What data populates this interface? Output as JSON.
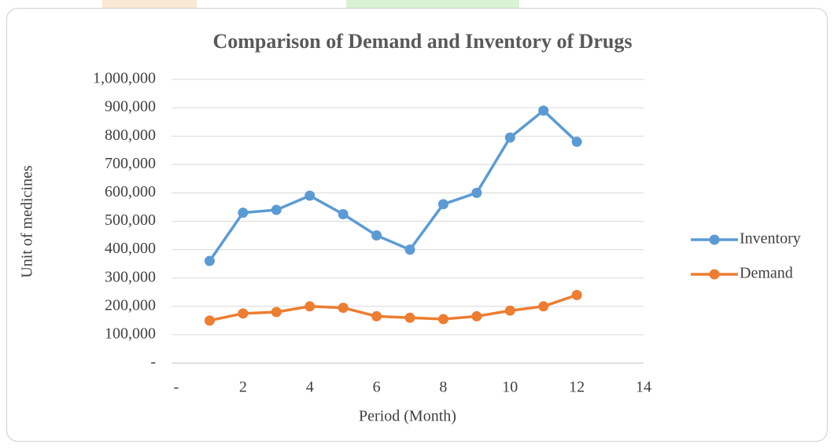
{
  "chart_data": {
    "type": "line",
    "title": "Comparison of Demand and Inventory of Drugs",
    "x_label": "Period (Month)",
    "y_label": "Unit of medicines",
    "x": [
      1,
      2,
      3,
      4,
      5,
      6,
      7,
      8,
      9,
      10,
      11,
      12
    ],
    "series": [
      {
        "name": "Inventory",
        "color": "#5b9bd5",
        "values": [
          360000,
          530000,
          540000,
          590000,
          525000,
          450000,
          400000,
          560000,
          600000,
          795000,
          890000,
          780000
        ]
      },
      {
        "name": "Demand",
        "color": "#ed7d31",
        "values": [
          150000,
          175000,
          180000,
          200000,
          195000,
          165000,
          160000,
          155000,
          165000,
          185000,
          200000,
          240000
        ]
      }
    ],
    "xlim": [
      0,
      14
    ],
    "xticks": [
      {
        "value": 0,
        "label": "-"
      },
      2,
      4,
      6,
      8,
      10,
      12,
      14
    ],
    "ylim": [
      0,
      1000000
    ],
    "yticks": [
      {
        "value": 0,
        "label": "-"
      },
      {
        "value": 100000,
        "label": "100,000"
      },
      {
        "value": 200000,
        "label": "200,000"
      },
      {
        "value": 300000,
        "label": "300,000"
      },
      {
        "value": 400000,
        "label": "400,000"
      },
      {
        "value": 500000,
        "label": "500,000"
      },
      {
        "value": 600000,
        "label": "600,000"
      },
      {
        "value": 700000,
        "label": "700,000"
      },
      {
        "value": 800000,
        "label": "800,000"
      },
      {
        "value": 900000,
        "label": "900,000"
      },
      {
        "value": 1000000,
        "label": "1,000,000"
      }
    ],
    "grid": true,
    "legend": "right"
  }
}
